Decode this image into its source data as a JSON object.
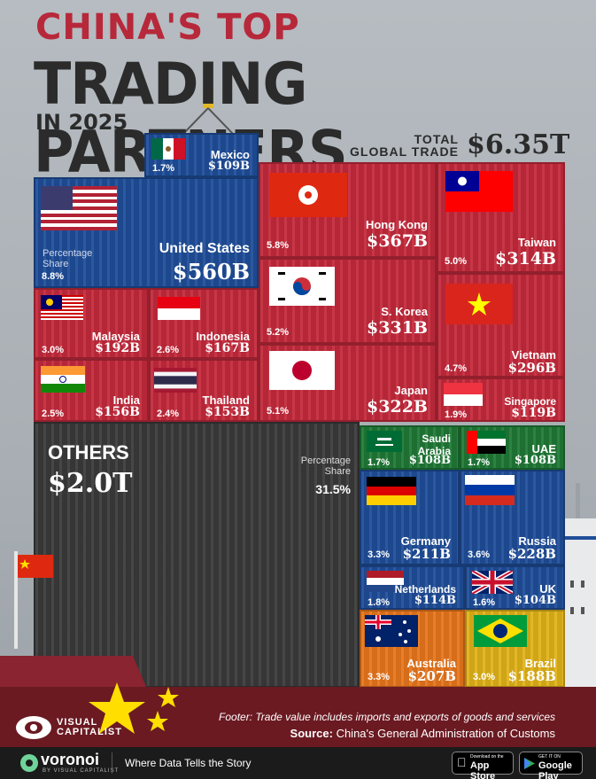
{
  "header": {
    "line1": "CHINA'S TOP",
    "line2": "TRADING PARTNERS",
    "line3": "IN 2025",
    "total_label_1": "TOTAL",
    "total_label_2": "GLOBAL TRADE",
    "total_value": "$6.35T"
  },
  "chart_data": {
    "type": "treemap",
    "title": "CHINA'S TOP TRADING PARTNERS IN 2025",
    "total": "$6.35T",
    "unit": "B",
    "items": [
      {
        "name": "United States",
        "value": 560,
        "label": "$560B",
        "share": "8.8%"
      },
      {
        "name": "Hong Kong",
        "value": 367,
        "label": "$367B",
        "share": "5.8%"
      },
      {
        "name": "S. Korea",
        "value": 331,
        "label": "$331B",
        "share": "5.2%"
      },
      {
        "name": "Japan",
        "value": 322,
        "label": "$322B",
        "share": "5.1%"
      },
      {
        "name": "Taiwan",
        "value": 314,
        "label": "$314B",
        "share": "5.0%"
      },
      {
        "name": "Vietnam",
        "value": 296,
        "label": "$296B",
        "share": "4.7%"
      },
      {
        "name": "Russia",
        "value": 228,
        "label": "$228B",
        "share": "3.6%"
      },
      {
        "name": "Germany",
        "value": 211,
        "label": "$211B",
        "share": "3.3%"
      },
      {
        "name": "Australia",
        "value": 207,
        "label": "$207B",
        "share": "3.3%"
      },
      {
        "name": "Malaysia",
        "value": 192,
        "label": "$192B",
        "share": "3.0%"
      },
      {
        "name": "Brazil",
        "value": 188,
        "label": "$188B",
        "share": "3.0%"
      },
      {
        "name": "Indonesia",
        "value": 167,
        "label": "$167B",
        "share": "2.6%"
      },
      {
        "name": "India",
        "value": 156,
        "label": "$156B",
        "share": "2.5%"
      },
      {
        "name": "Thailand",
        "value": 153,
        "label": "$153B",
        "share": "2.4%"
      },
      {
        "name": "Singapore",
        "value": 119,
        "label": "$119B",
        "share": "1.9%"
      },
      {
        "name": "Netherlands",
        "value": 114,
        "label": "$114B",
        "share": "1.8%"
      },
      {
        "name": "Mexico",
        "value": 109,
        "label": "$109B",
        "share": "1.7%"
      },
      {
        "name": "Saudi Arabia",
        "value": 108,
        "label": "$108B",
        "share": "1.7%"
      },
      {
        "name": "UAE",
        "value": 108,
        "label": "$108B",
        "share": "1.7%"
      },
      {
        "name": "UK",
        "value": 104,
        "label": "$104B",
        "share": "1.6%"
      },
      {
        "name": "OTHERS",
        "value": 2000,
        "label": "$2.0T",
        "share": "31.5%"
      }
    ],
    "share_label_us": "Percentage Share",
    "share_label_others": "Percentage Share"
  },
  "footer": {
    "note": "Footer: Trade value includes imports and exports of goods and services",
    "source_label": "Source:",
    "source_text": "China's General Administration of Customs",
    "brand": "VISUAL CAPITALIST",
    "voronoi": "voronoi",
    "voronoi_sub": "BY VISUAL CAPITALIST",
    "tagline": "Where Data Tells the Story",
    "appstore": "App Store",
    "appstore_small": "Download on the",
    "googleplay": "Google Play",
    "googleplay_small": "GET IT ON"
  },
  "colors": {
    "red": "#c42a3c",
    "blue": "#1f4e9a",
    "green": "#1f7a36",
    "orange": "#e8761c",
    "yellow": "#e1b31a",
    "gray": "#3a3a3a",
    "title_red": "#b7283a"
  }
}
